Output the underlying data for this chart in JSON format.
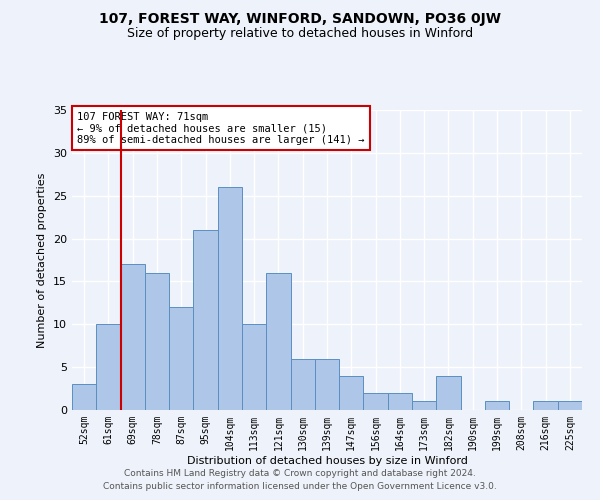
{
  "title": "107, FOREST WAY, WINFORD, SANDOWN, PO36 0JW",
  "subtitle": "Size of property relative to detached houses in Winford",
  "xlabel": "Distribution of detached houses by size in Winford",
  "ylabel": "Number of detached properties",
  "categories": [
    "52sqm",
    "61sqm",
    "69sqm",
    "78sqm",
    "87sqm",
    "95sqm",
    "104sqm",
    "113sqm",
    "121sqm",
    "130sqm",
    "139sqm",
    "147sqm",
    "156sqm",
    "164sqm",
    "173sqm",
    "182sqm",
    "190sqm",
    "199sqm",
    "208sqm",
    "216sqm",
    "225sqm"
  ],
  "values": [
    3,
    10,
    17,
    16,
    12,
    21,
    26,
    10,
    16,
    6,
    6,
    4,
    2,
    2,
    1,
    4,
    0,
    1,
    0,
    1,
    1
  ],
  "bar_color": "#aec6e8",
  "bar_edge_color": "#5a8fc2",
  "vline_x": 1.5,
  "vline_color": "#cc0000",
  "annotation_text": "107 FOREST WAY: 71sqm\n← 9% of detached houses are smaller (15)\n89% of semi-detached houses are larger (141) →",
  "annotation_box_color": "#ffffff",
  "annotation_box_edge_color": "#cc0000",
  "ylim": [
    0,
    35
  ],
  "yticks": [
    0,
    5,
    10,
    15,
    20,
    25,
    30,
    35
  ],
  "footer_line1": "Contains HM Land Registry data © Crown copyright and database right 2024.",
  "footer_line2": "Contains public sector information licensed under the Open Government Licence v3.0.",
  "background_color": "#eef2fa",
  "grid_color": "#ffffff",
  "title_fontsize": 10,
  "subtitle_fontsize": 9,
  "tick_fontsize": 7,
  "ylabel_fontsize": 8,
  "xlabel_fontsize": 8,
  "footer_fontsize": 6.5,
  "annotation_fontsize": 7.5
}
